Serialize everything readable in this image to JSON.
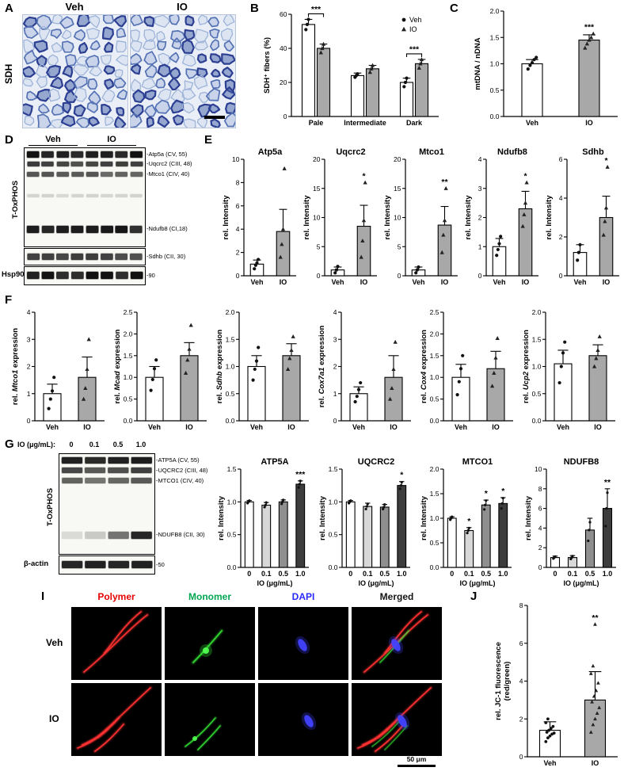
{
  "panels": {
    "A": {
      "label": "A",
      "stain_label": "SDH",
      "col_labels": [
        "Veh",
        "IO"
      ]
    },
    "B": {
      "label": "B"
    },
    "C": {
      "label": "C"
    },
    "D": {
      "label": "D",
      "col_labels": [
        "Veh",
        "IO"
      ],
      "side_label": "T-OxPHOS",
      "bottom_label": "Hsp90",
      "band_labels": [
        "-Atp5a (CV, 55)",
        "-Uqcrc2 (CIII, 48)",
        "-Mtco1 (CIV, 40)",
        "-Ndufb8 (CI,18)",
        "-Sdhb (CII, 30)",
        "-90"
      ]
    },
    "E": {
      "label": "E"
    },
    "F": {
      "label": "F"
    },
    "G": {
      "label": "G",
      "dose_label": "IO (μg/mL):",
      "doses": [
        "0",
        "0.1",
        "0.5",
        "1.0"
      ],
      "side_label": "T-OxPHOS",
      "bottom_label": "β-actin",
      "band_labels": [
        "-ATP5A (CV, 55)",
        "-UQCRC2 (CIII, 48)",
        "-MTCO1 (CIV, 40)",
        "-NDUFB8 (CII, 30)",
        "-50"
      ]
    },
    "I": {
      "label": "I",
      "col_labels": [
        {
          "text": "Polymer",
          "color": "#e60000"
        },
        {
          "text": "Monomer",
          "color": "#00a651"
        },
        {
          "text": "DAPI",
          "color": "#2a2aff"
        },
        {
          "text": "Merged",
          "color": "#161616"
        }
      ],
      "row_labels": [
        "Veh",
        "IO"
      ],
      "scale_label": "50 μm"
    },
    "J": {
      "label": "J"
    }
  },
  "chart_data": [
    {
      "id": "B",
      "type": "bar",
      "grouped": true,
      "ml": 38,
      "mt": 12,
      "ylabel": "SDH⁺ fibers (%)",
      "ylim": [
        0,
        60
      ],
      "yticks": [
        0,
        20,
        40,
        60
      ],
      "dp": 0,
      "categories": [
        "Pale",
        "Intermediate",
        "Dark"
      ],
      "series": [
        {
          "name": "Veh",
          "color": "#ffffff",
          "marker": "circle",
          "values": [
            54,
            24,
            20
          ],
          "errors": [
            3,
            1.5,
            2.5
          ],
          "points": [
            [
              51,
              54,
              57
            ],
            [
              23,
              24,
              25
            ],
            [
              17.5,
              20,
              22.5
            ]
          ]
        },
        {
          "name": "IO",
          "color": "#a8a8a8",
          "marker": "triangle",
          "values": [
            40,
            28,
            31
          ],
          "errors": [
            2.5,
            2,
            2.5
          ],
          "points": [
            [
              37.5,
              40,
              42.5
            ],
            [
              26,
              28,
              30
            ],
            [
              28.5,
              31,
              33.5
            ]
          ]
        }
      ],
      "sig_brackets": [
        {
          "group": 0,
          "text": "***"
        },
        {
          "group": 2,
          "text": "***"
        }
      ],
      "legend": true
    },
    {
      "id": "C",
      "type": "bar",
      "ml": 40,
      "ylabel": "mtDNA / nDNA",
      "ylim": [
        0,
        2
      ],
      "yticks": [
        0,
        0.5,
        1,
        1.5,
        2
      ],
      "dp": 1,
      "categories": [
        "Veh",
        "IO"
      ],
      "colors": [
        "#ffffff",
        "#a8a8a8"
      ],
      "markers": [
        "circle",
        "triangle"
      ],
      "values": [
        1.0,
        1.45
      ],
      "errors": [
        0.08,
        0.1
      ],
      "points": [
        [
          0.9,
          0.97,
          1.02,
          1.08,
          1.12
        ],
        [
          1.3,
          1.38,
          1.45,
          1.5,
          1.57
        ]
      ],
      "sig": [
        {
          "bar": 1,
          "text": "***"
        }
      ]
    },
    {
      "id": "E1",
      "type": "bar",
      "ml": 30,
      "title": "Atp5a",
      "ylabel": "rel. Intensity",
      "ylim": [
        0,
        10
      ],
      "yticks": [
        0,
        2,
        4,
        6,
        8,
        10
      ],
      "dp": 0,
      "categories": [
        "Veh",
        "IO"
      ],
      "colors": [
        "#ffffff",
        "#a8a8a8"
      ],
      "markers": [
        "circle",
        "triangle"
      ],
      "values": [
        1,
        3.8
      ],
      "errors": [
        0.35,
        1.9
      ],
      "points": [
        [
          0.6,
          0.9,
          1.1,
          1.4
        ],
        [
          1.6,
          2.7,
          4.0,
          9.2
        ]
      ],
      "sig": []
    },
    {
      "id": "E2",
      "type": "bar",
      "ml": 30,
      "title": "Uqcrc2",
      "ylabel": "rel. Intensity",
      "ylim": [
        0,
        20
      ],
      "yticks": [
        0,
        5,
        10,
        15,
        20
      ],
      "dp": 0,
      "categories": [
        "Veh",
        "IO"
      ],
      "colors": [
        "#ffffff",
        "#a8a8a8"
      ],
      "markers": [
        "circle",
        "triangle"
      ],
      "values": [
        1,
        8.5
      ],
      "errors": [
        0.5,
        3.6
      ],
      "points": [
        [
          0.5,
          1,
          1.6
        ],
        [
          3.2,
          6,
          9.5,
          16
        ]
      ],
      "sig": [
        {
          "bar": 1,
          "text": "*"
        }
      ]
    },
    {
      "id": "E3",
      "type": "bar",
      "ml": 30,
      "title": "Mtco1",
      "ylabel": "rel. Intensity",
      "ylim": [
        0,
        20
      ],
      "yticks": [
        0,
        5,
        10,
        15,
        20
      ],
      "dp": 0,
      "categories": [
        "Veh",
        "IO"
      ],
      "colors": [
        "#ffffff",
        "#a8a8a8"
      ],
      "markers": [
        "circle",
        "triangle"
      ],
      "values": [
        1,
        8.7
      ],
      "errors": [
        0.5,
        3.2
      ],
      "points": [
        [
          0.5,
          1,
          1.5
        ],
        [
          4,
          7,
          9.5,
          15
        ]
      ],
      "sig": [
        {
          "bar": 1,
          "text": "**"
        }
      ]
    },
    {
      "id": "E4",
      "type": "bar",
      "ml": 30,
      "title": "Ndufb8",
      "ylabel": "rel. Intensity",
      "ylim": [
        0,
        4
      ],
      "yticks": [
        0,
        1,
        2,
        3,
        4
      ],
      "dp": 0,
      "categories": [
        "Veh",
        "IO"
      ],
      "colors": [
        "#ffffff",
        "#a8a8a8"
      ],
      "markers": [
        "circle",
        "triangle"
      ],
      "values": [
        1,
        2.3
      ],
      "errors": [
        0.28,
        0.6
      ],
      "points": [
        [
          0.7,
          0.9,
          1.1,
          1.35
        ],
        [
          1.7,
          2.1,
          2.5,
          3.2
        ]
      ],
      "sig": [
        {
          "bar": 1,
          "text": "*"
        }
      ]
    },
    {
      "id": "E5",
      "type": "bar",
      "ml": 30,
      "title": "Sdhb",
      "ylabel": "rel. Intensity",
      "ylim": [
        0,
        6
      ],
      "yticks": [
        0,
        2,
        4,
        6
      ],
      "dp": 0,
      "categories": [
        "Veh",
        "IO"
      ],
      "colors": [
        "#ffffff",
        "#a8a8a8"
      ],
      "markers": [
        "circle",
        "triangle"
      ],
      "values": [
        1.2,
        3.0
      ],
      "errors": [
        0.4,
        1.1
      ],
      "points": [
        [
          0.8,
          1.2,
          1.6
        ],
        [
          2.1,
          2.8,
          3.5,
          5.6
        ]
      ],
      "sig": [
        {
          "bar": 1,
          "text": "*"
        }
      ]
    },
    {
      "id": "F1",
      "type": "bar",
      "ml": 32,
      "ylabel_parts": [
        {
          "t": "rel. "
        },
        {
          "t": "Mtco1",
          "i": true
        },
        {
          "t": " expression"
        }
      ],
      "ylim": [
        0,
        4
      ],
      "yticks": [
        0,
        1,
        2,
        3,
        4
      ],
      "dp": 0,
      "categories": [
        "Veh",
        "IO"
      ],
      "colors": [
        "#ffffff",
        "#a8a8a8"
      ],
      "markers": [
        "circle",
        "triangle"
      ],
      "values": [
        1.0,
        1.6
      ],
      "errors": [
        0.35,
        0.75
      ],
      "points": [
        [
          0.45,
          0.8,
          1.1,
          1.6
        ],
        [
          0.8,
          1.2,
          1.9,
          3.0
        ]
      ],
      "sig": []
    },
    {
      "id": "F2",
      "type": "bar",
      "ml": 32,
      "ylabel_parts": [
        {
          "t": "rel. "
        },
        {
          "t": "Mcad",
          "i": true
        },
        {
          "t": " expression"
        }
      ],
      "ylim": [
        0,
        2.5
      ],
      "yticks": [
        0,
        0.5,
        1,
        1.5,
        2,
        2.5
      ],
      "dp": 1,
      "categories": [
        "Veh",
        "IO"
      ],
      "colors": [
        "#ffffff",
        "#a8a8a8"
      ],
      "markers": [
        "circle",
        "triangle"
      ],
      "values": [
        1.0,
        1.5
      ],
      "errors": [
        0.25,
        0.3
      ],
      "points": [
        [
          0.7,
          0.95,
          1.2,
          1.4
        ],
        [
          1.1,
          1.4,
          1.65,
          2.2
        ]
      ],
      "sig": []
    },
    {
      "id": "F3",
      "type": "bar",
      "ml": 32,
      "ylabel_parts": [
        {
          "t": "rel. "
        },
        {
          "t": "Sdhb",
          "i": true
        },
        {
          "t": " expression"
        }
      ],
      "ylim": [
        0,
        2
      ],
      "yticks": [
        0,
        0.5,
        1,
        1.5,
        2
      ],
      "dp": 1,
      "categories": [
        "Veh",
        "IO"
      ],
      "colors": [
        "#ffffff",
        "#a8a8a8"
      ],
      "markers": [
        "circle",
        "triangle"
      ],
      "values": [
        1.0,
        1.2
      ],
      "errors": [
        0.2,
        0.22
      ],
      "points": [
        [
          0.75,
          0.95,
          1.1,
          1.35
        ],
        [
          0.95,
          1.15,
          1.3,
          1.55
        ]
      ],
      "sig": []
    },
    {
      "id": "F4",
      "type": "bar",
      "ml": 32,
      "ylabel_parts": [
        {
          "t": "rel. "
        },
        {
          "t": "Cox7a1",
          "i": true
        },
        {
          "t": " expression"
        }
      ],
      "ylim": [
        0,
        4
      ],
      "yticks": [
        0,
        1,
        2,
        3,
        4
      ],
      "dp": 0,
      "categories": [
        "Veh",
        "IO"
      ],
      "colors": [
        "#ffffff",
        "#a8a8a8"
      ],
      "markers": [
        "circle",
        "triangle"
      ],
      "values": [
        1.0,
        1.6
      ],
      "errors": [
        0.25,
        0.8
      ],
      "points": [
        [
          0.7,
          0.9,
          1.15,
          1.4
        ],
        [
          0.8,
          1.2,
          1.9,
          2.9
        ]
      ],
      "sig": []
    },
    {
      "id": "F5",
      "type": "bar",
      "ml": 32,
      "ylabel_parts": [
        {
          "t": "rel. "
        },
        {
          "t": "Cox4",
          "i": true
        },
        {
          "t": " expression"
        }
      ],
      "ylim": [
        0,
        2.5
      ],
      "yticks": [
        0,
        0.5,
        1,
        1.5,
        2,
        2.5
      ],
      "dp": 1,
      "categories": [
        "Veh",
        "IO"
      ],
      "colors": [
        "#ffffff",
        "#a8a8a8"
      ],
      "markers": [
        "circle",
        "triangle"
      ],
      "values": [
        1.0,
        1.2
      ],
      "errors": [
        0.3,
        0.4
      ],
      "points": [
        [
          0.6,
          0.9,
          1.2,
          1.5
        ],
        [
          0.8,
          1.1,
          1.45,
          1.9
        ]
      ],
      "sig": []
    },
    {
      "id": "F6",
      "type": "bar",
      "ml": 32,
      "ylabel_parts": [
        {
          "t": "rel. "
        },
        {
          "t": "Ucp2",
          "i": true
        },
        {
          "t": " expression"
        }
      ],
      "ylim": [
        0,
        2
      ],
      "yticks": [
        0,
        0.5,
        1,
        1.5,
        2
      ],
      "dp": 1,
      "categories": [
        "Veh",
        "IO"
      ],
      "colors": [
        "#ffffff",
        "#a8a8a8"
      ],
      "markers": [
        "circle",
        "triangle"
      ],
      "values": [
        1.05,
        1.2
      ],
      "errors": [
        0.25,
        0.2
      ],
      "points": [
        [
          0.7,
          1.0,
          1.25,
          1.45
        ],
        [
          1.0,
          1.15,
          1.3,
          1.55
        ]
      ],
      "sig": []
    },
    {
      "id": "GA",
      "type": "bar",
      "ml": 32,
      "psize": 1.6,
      "title": "ATP5A",
      "ylabel": "rel. Intensity",
      "xlabel": "IO (μg/mL)",
      "ylim": [
        0,
        1.5
      ],
      "yticks": [
        0,
        0.5,
        1,
        1.5
      ],
      "dp": 1,
      "categories": [
        "0",
        "0.1",
        "0.5",
        "1.0"
      ],
      "colors": [
        "#ffffff",
        "#d8d8d8",
        "#8f8f8f",
        "#3d3d3d"
      ],
      "markers": [
        "circle",
        "circle",
        "circle",
        "circle"
      ],
      "values": [
        1.0,
        0.95,
        1.0,
        1.27
      ],
      "errors": [
        0.02,
        0.04,
        0.03,
        0.05
      ],
      "points": [
        [
          0.98,
          1.0,
          1.02
        ],
        [
          0.92,
          0.95,
          0.99
        ],
        [
          0.97,
          1.0,
          1.03
        ],
        [
          1.22,
          1.27,
          1.32
        ]
      ],
      "sig": [
        {
          "bar": 3,
          "text": "***"
        }
      ]
    },
    {
      "id": "GU",
      "type": "bar",
      "ml": 32,
      "psize": 1.6,
      "title": "UQCRC2",
      "ylabel": "rel. Intensity",
      "xlabel": "IO (μg/mL)",
      "ylim": [
        0,
        1.5
      ],
      "yticks": [
        0,
        0.5,
        1,
        1.5
      ],
      "dp": 1,
      "categories": [
        "0",
        "0.1",
        "0.5",
        "1.0"
      ],
      "colors": [
        "#ffffff",
        "#d8d8d8",
        "#8f8f8f",
        "#3d3d3d"
      ],
      "markers": [
        "circle",
        "circle",
        "circle",
        "circle"
      ],
      "values": [
        1.0,
        0.93,
        0.92,
        1.25
      ],
      "errors": [
        0.02,
        0.05,
        0.04,
        0.06
      ],
      "points": [
        [
          0.98,
          1.0,
          1.02
        ],
        [
          0.89,
          0.93,
          0.97
        ],
        [
          0.89,
          0.92,
          0.96
        ],
        [
          1.2,
          1.25,
          1.3
        ]
      ],
      "sig": [
        {
          "bar": 3,
          "text": "*"
        }
      ]
    },
    {
      "id": "GM",
      "type": "bar",
      "ml": 32,
      "psize": 1.6,
      "title": "MTCO1",
      "ylabel": "rel. Intensity",
      "xlabel": "IO (μg/mL)",
      "ylim": [
        0,
        2
      ],
      "yticks": [
        0,
        0.5,
        1,
        1.5,
        2
      ],
      "dp": 1,
      "categories": [
        "0",
        "0.1",
        "0.5",
        "1.0"
      ],
      "colors": [
        "#ffffff",
        "#d8d8d8",
        "#8f8f8f",
        "#3d3d3d"
      ],
      "markers": [
        "circle",
        "circle",
        "circle",
        "circle"
      ],
      "values": [
        1.0,
        0.75,
        1.27,
        1.3
      ],
      "errors": [
        0.03,
        0.06,
        0.1,
        0.12
      ],
      "points": [
        [
          0.97,
          1.0,
          1.03
        ],
        [
          0.7,
          0.75,
          0.8
        ],
        [
          1.18,
          1.27,
          1.36
        ],
        [
          1.2,
          1.3,
          1.41
        ]
      ],
      "sig": [
        {
          "bar": 1,
          "text": "*"
        },
        {
          "bar": 2,
          "text": "*"
        },
        {
          "bar": 3,
          "text": "*"
        }
      ]
    },
    {
      "id": "GN",
      "type": "bar",
      "ml": 30,
      "psize": 1.6,
      "title": "NDUFB8",
      "ylabel": "rel. Intensity",
      "xlabel": "IO (μg/mL)",
      "ylim": [
        0,
        10
      ],
      "yticks": [
        0,
        2,
        4,
        6,
        8,
        10
      ],
      "dp": 0,
      "categories": [
        "0",
        "0.1",
        "0.5",
        "1.0"
      ],
      "colors": [
        "#ffffff",
        "#d8d8d8",
        "#8f8f8f",
        "#3d3d3d"
      ],
      "markers": [
        "circle",
        "circle",
        "circle",
        "circle"
      ],
      "values": [
        1.0,
        1.0,
        3.8,
        6.0
      ],
      "errors": [
        0.15,
        0.2,
        1.2,
        2.0
      ],
      "points": [
        [
          0.9,
          1.0,
          1.1
        ],
        [
          0.85,
          1.0,
          1.15
        ],
        [
          2.7,
          3.8,
          4.6
        ],
        [
          4.2,
          6.0,
          7.6
        ]
      ],
      "sig": [
        {
          "bar": 3,
          "text": "**"
        }
      ]
    },
    {
      "id": "J",
      "type": "bar",
      "ml": 44,
      "psize": 1.9,
      "ylabel_lines": [
        "rel. JC-1 fluorescence",
        "(red/green)"
      ],
      "ylim": [
        0,
        8
      ],
      "yticks": [
        0,
        2,
        4,
        6,
        8
      ],
      "dp": 0,
      "categories": [
        "Veh",
        "IO"
      ],
      "colors": [
        "#ffffff",
        "#a8a8a8"
      ],
      "markers": [
        "circle",
        "triangle"
      ],
      "values": [
        1.4,
        3.0
      ],
      "errors": [
        0.45,
        1.5
      ],
      "points": [
        [
          0.8,
          1.0,
          1.1,
          1.2,
          1.25,
          1.3,
          1.4,
          1.5,
          1.6,
          1.8,
          2.0
        ],
        [
          1.3,
          1.7,
          2.0,
          2.3,
          2.6,
          2.9,
          3.2,
          3.5,
          3.9,
          4.4,
          4.8,
          7.0
        ]
      ],
      "sig": [
        {
          "bar": 1,
          "text": "**"
        }
      ]
    }
  ]
}
